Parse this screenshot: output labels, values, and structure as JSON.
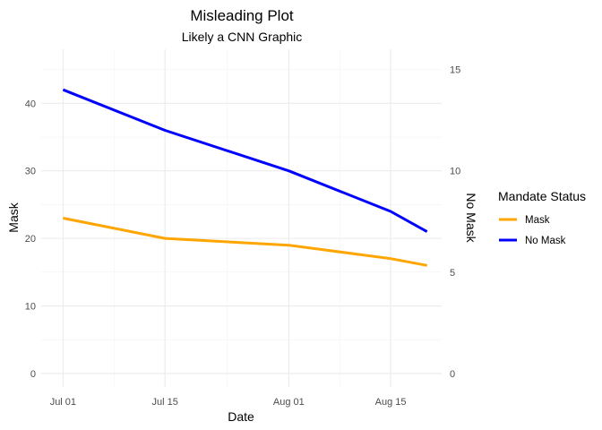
{
  "chart_data": {
    "type": "line",
    "title": "Misleading Plot",
    "subtitle": "Likely a CNN Graphic",
    "xlabel": "Date",
    "ylabel_left": "Mask",
    "ylabel_right": "No Mask",
    "x_ticks": [
      "Jul 01",
      "Jul 15",
      "Aug 01",
      "Aug 15"
    ],
    "y_left": {
      "lim": [
        -2,
        48
      ],
      "ticks": [
        0,
        10,
        20,
        30,
        40
      ]
    },
    "y_right": {
      "lim": [
        -0.667,
        16
      ],
      "ticks": [
        0,
        5,
        10,
        15
      ]
    },
    "grid": true,
    "legend": {
      "title": "Mandate Status",
      "position": "right",
      "entries": [
        {
          "name": "Mask",
          "color": "#FFA500"
        },
        {
          "name": "No Mask",
          "color": "#0000FF"
        }
      ]
    },
    "series": [
      {
        "name": "Mask",
        "axis": "left",
        "color": "#FFA500",
        "points": [
          {
            "x": "2020-07-01",
            "y": 23
          },
          {
            "x": "2020-07-15",
            "y": 20
          },
          {
            "x": "2020-08-01",
            "y": 19
          },
          {
            "x": "2020-08-15",
            "y": 17
          },
          {
            "x": "2020-08-20",
            "y": 16
          }
        ]
      },
      {
        "name": "No Mask",
        "axis": "right",
        "color": "#0000FF",
        "points": [
          {
            "x": "2020-07-01",
            "y": 14
          },
          {
            "x": "2020-07-15",
            "y": 12
          },
          {
            "x": "2020-08-01",
            "y": 10
          },
          {
            "x": "2020-08-15",
            "y": 8
          },
          {
            "x": "2020-08-20",
            "y": 7
          }
        ]
      }
    ]
  }
}
